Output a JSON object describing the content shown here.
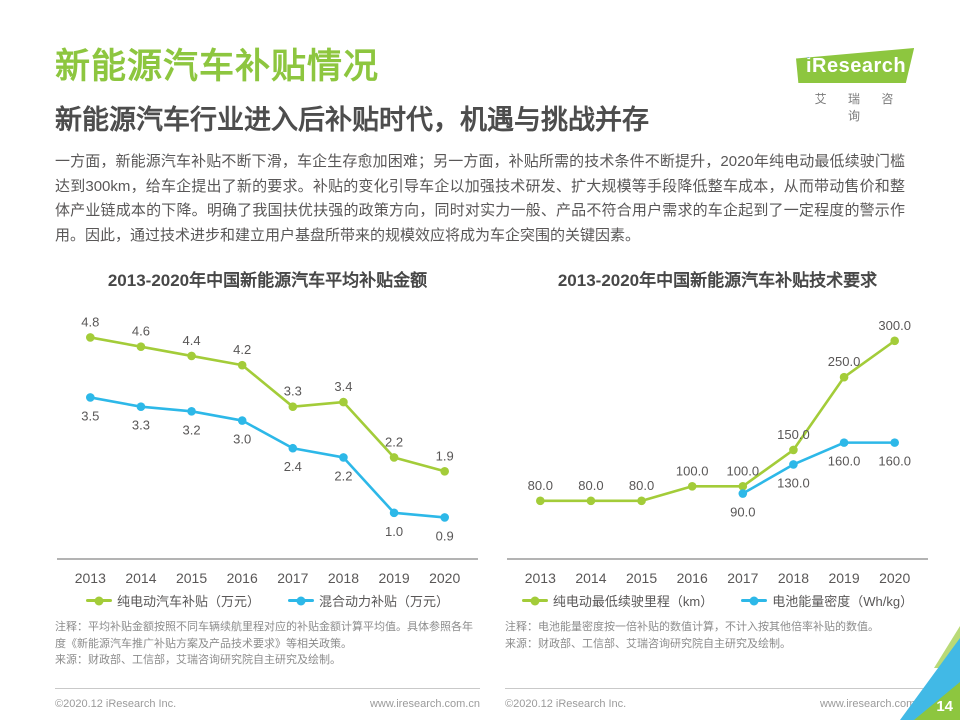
{
  "page": {
    "title": "新能源汽车补贴情况",
    "subtitle": "新能源汽车行业进入后补贴时代，机遇与挑战并存",
    "body": "一方面，新能源汽车补贴不断下滑，车企生存愈加困难；另一方面，补贴所需的技术条件不断提升，2020年纯电动最低续驶门槛达到300km，给车企提出了新的要求。补贴的变化引导车企以加强技术研发、扩大规模等手段降低整车成本，从而带动售价和整体产业链成本的下降。明确了我国扶优扶强的政策方向，同时对实力一般、产品不符合用户需求的车企起到了一定程度的警示作用。因此，通过技术进步和建立用户基盘所带来的规模效应将成为车企突围的关键因素。",
    "page_number": "14"
  },
  "logo": {
    "brand": "iResearch",
    "brand_cn": "艾 瑞 咨 询"
  },
  "colors": {
    "title_green": "#8dc63f",
    "series_green": "#a3cc39",
    "series_blue": "#2db8e8",
    "axis_gray": "#9a9a9a",
    "label_gray": "#595757"
  },
  "chart_data": [
    {
      "type": "line",
      "title": "2013-2020年中国新能源汽车平均补贴金额",
      "categories": [
        "2013",
        "2014",
        "2015",
        "2016",
        "2017",
        "2018",
        "2019",
        "2020"
      ],
      "series": [
        {
          "name": "纯电动汽车补贴（万元）",
          "color": "#a3cc39",
          "label_position": "above",
          "values": [
            4.8,
            4.6,
            4.4,
            4.2,
            3.3,
            3.4,
            2.2,
            1.9
          ]
        },
        {
          "name": "混合动力补贴（万元）",
          "color": "#2db8e8",
          "label_position": "below",
          "values": [
            3.5,
            3.3,
            3.2,
            3.0,
            2.4,
            2.2,
            1.0,
            0.9
          ]
        }
      ],
      "ylim": [
        0,
        5.2
      ],
      "label_decimals": 1,
      "grid": false,
      "legend_position": "bottom",
      "note": "注释：平均补贴金额按照不同车辆续航里程对应的补贴金额计算平均值。具体参照各年度《新能源汽车推广补贴方案及产品技术要求》等相关政策。",
      "source": "来源：财政部、工信部，艾瑞咨询研究院自主研究及绘制。"
    },
    {
      "type": "line",
      "title": "2013-2020年中国新能源汽车补贴技术要求",
      "categories": [
        "2013",
        "2014",
        "2015",
        "2016",
        "2017",
        "2018",
        "2019",
        "2020"
      ],
      "series": [
        {
          "name": "纯电动最低续驶里程（km）",
          "color": "#a3cc39",
          "label_position": "above",
          "values": [
            80.0,
            80.0,
            80.0,
            100.0,
            100.0,
            150.0,
            250.0,
            300.0
          ]
        },
        {
          "name": "电池能量密度（Wh/kg）",
          "color": "#2db8e8",
          "label_position": "below",
          "values": [
            null,
            null,
            null,
            null,
            90.0,
            130.0,
            160.0,
            160.0
          ]
        }
      ],
      "ylim": [
        0,
        330
      ],
      "label_decimals": 1,
      "grid": false,
      "legend_position": "bottom",
      "note": "注释：电池能量密度按一倍补贴的数值计算，不计入按其他倍率补贴的数值。",
      "source": "来源：财政部、工信部、艾瑞咨询研究院自主研究及绘制。"
    }
  ],
  "footer": {
    "copyright": "©2020.12 iResearch Inc.",
    "url": "www.iresearch.com.cn"
  }
}
